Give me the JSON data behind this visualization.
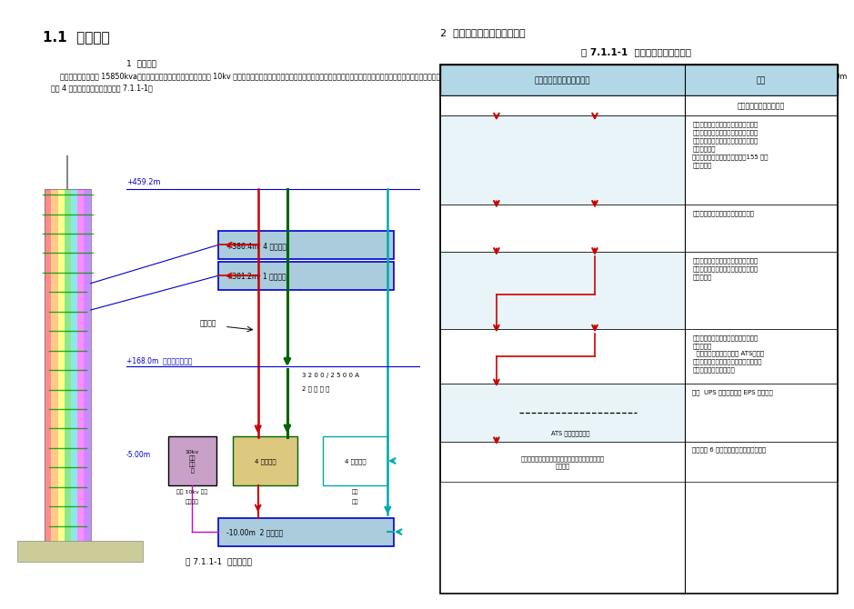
{
  "page_bg": "#ffffff",
  "left_section": {
    "heading": "1.1  系统简介",
    "subheading": "1  系统简介",
    "body_text": "    本工程总装机容量共 15850kva，电源由市政不同区域变电站引入两路 10kv 高压电源。两路电源同时供电并互为备用，分列运行，当一路电源故障时，另一路电源能承担全部一二级负荷。10kv 电缆由室外电缆沟引入-5.0m 层高压配电室，由高压配电室用 YJV22-12-3x95 电缆引至-10.00m、-5.0m、+381.2m 及+386.4m 变压器。在-5.0m 层设 4 台应急发电机组，具体见图 7.1.1-1。",
    "diagram_caption": "图 7.1.1-1  电气系统图",
    "label_459": "+459.2m",
    "label_386": "+386.4m  4 台变压器",
    "label_381": "+381.2m  1 台变压器",
    "label_high_voltage": "高压电缆",
    "label_168": "+168.0m  高低区配电分界",
    "busbar_line1": "3 2 0 0 / 2 5 0 0 A",
    "busbar_line2": "2 组 母 线 槽",
    "label_neg5": "-5.00m",
    "label_neg10": "-10.00m  2 台变压器",
    "box_10kv": "10kv\n高压\n配电\n室",
    "box_4_transformer": "4 台变压器",
    "box_4_generator": "4 台发电机",
    "label_two_circuit_1": "两路 10kv 电源",
    "label_two_circuit_2": "户外引入",
    "label_low_voltage_1": "低压",
    "label_low_voltage_2": "电缆"
  },
  "right_section": {
    "section_heading": "2  特级负荷供电保障系统简介",
    "table_title": "表 7.1.1-1  特级负荷供电保障系统",
    "col1_header": "设备及设备间的联系示意图",
    "col2_header": "说明",
    "row0_desc": "引自不同区域的两路市电",
    "row1_desc": "一、该组高压柜中设一个母联柜，从而\n实现两路电源互为备用，分列运行，当\n一路电源故障时另一路电源能承担全部\n一二级负荷。\n二、当两台变压器停电确认后，155 内向\n负荷供电。",
    "row2_desc": "三、两台变压器并列运行互为备用。",
    "row3_desc": "四、通过两组低压配电柜中的母联柜和\n封闭母线槽，实现两台变压器并列运行\n互为备用。",
    "row4_desc": "五、双电源自动切换箱的电源引自不同\n的变压器。\n  设备内置双电源转换开关 ATS（如左\n图），具有机械、电气双重互锁功能，主\n开关损坏可不断电更换。",
    "row4_label": "ATS 双电源转换开关",
    "row5_desc": "六、  UPS 不间断电源或 EPS 应急电源",
    "row6_col1": "广播技术用房、通信用房、网络机房、消防及安保中\n心等负荷",
    "row6_desc": "通过上述 6 级保证，实现供电的可靠性。"
  },
  "colors": {
    "page_bg": "#ffffff",
    "table_header_bg": "#b2d8e8",
    "table_border": "#000000",
    "red": "#cc0000",
    "dark_green": "#006400",
    "cyan": "#00aaaa",
    "blue": "#0000cc",
    "magenta": "#cc00cc",
    "box_10kv_bg": "#c8a0c8",
    "box_blue_bg": "#aaccdd",
    "box_trans_bg": "#ddc880",
    "box_gen_border": "#00aaaa",
    "row_img_bg_odd": "#e8f4f8",
    "row_img_bg_even": "#ffffff"
  }
}
